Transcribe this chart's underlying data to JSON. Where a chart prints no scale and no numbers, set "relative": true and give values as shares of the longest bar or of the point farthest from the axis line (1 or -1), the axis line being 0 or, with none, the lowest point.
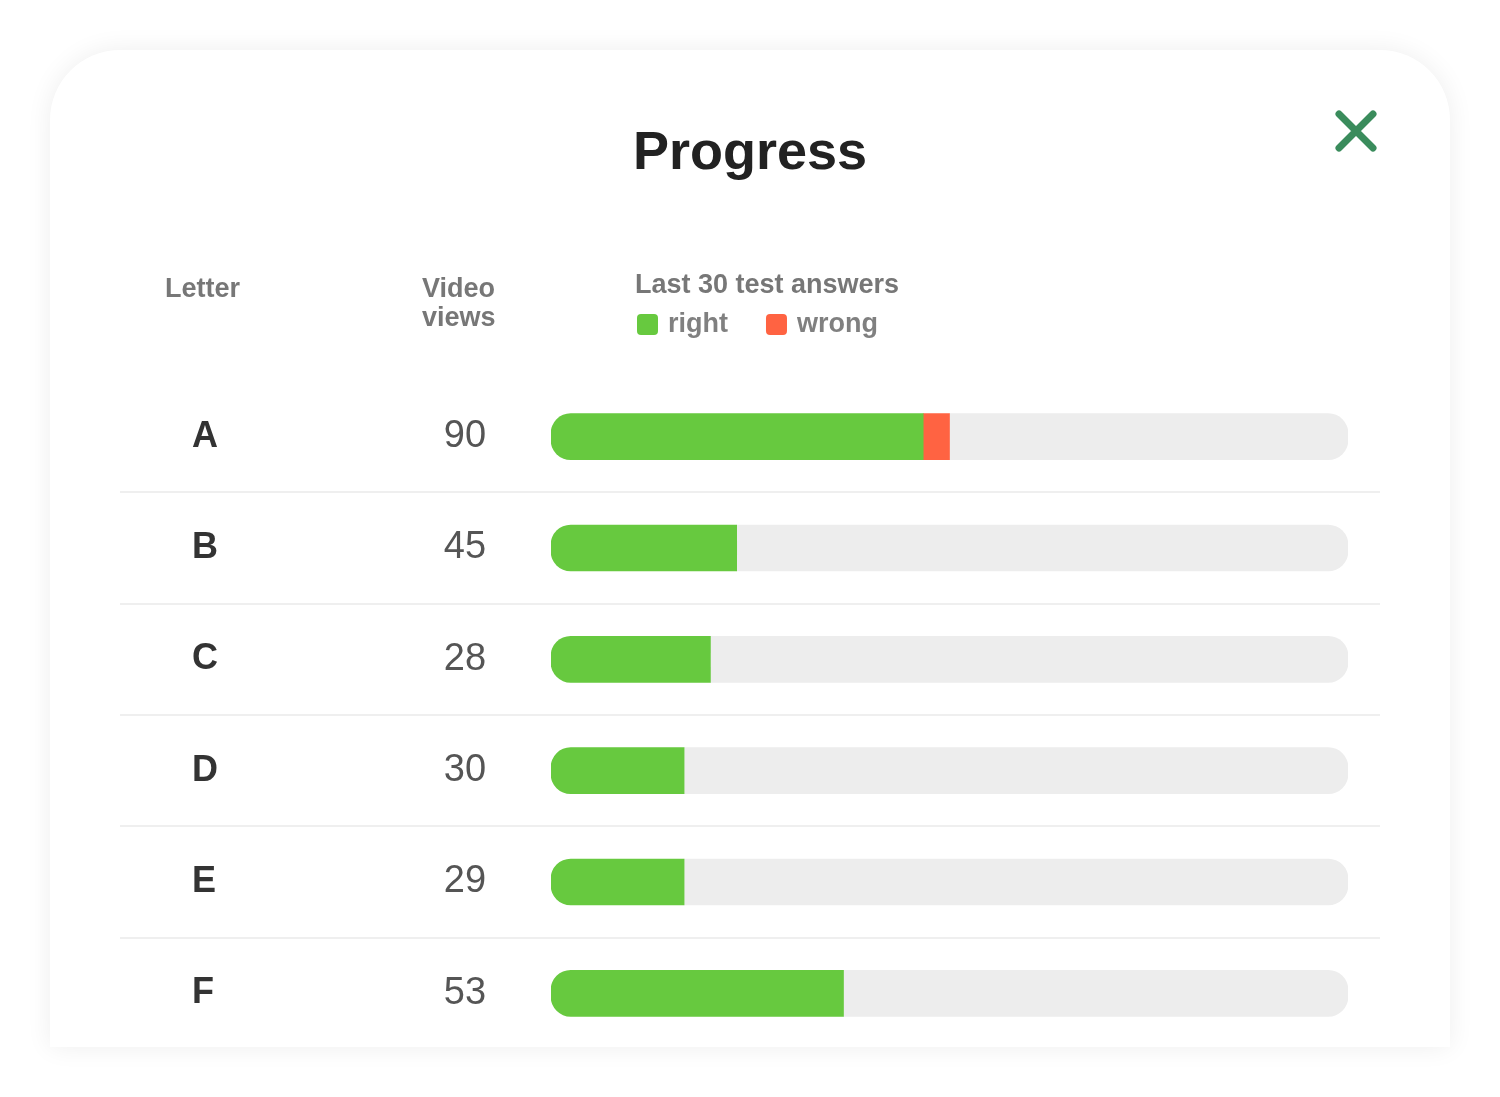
{
  "chart_data": {
    "type": "bar",
    "orientation": "horizontal",
    "stacked": true,
    "relative": true,
    "title": "Progress",
    "ylabel": "Letter",
    "legend_title": "Last 30 test answers",
    "legend": "top left",
    "categories": [
      "A",
      "B",
      "C",
      "D",
      "E",
      "F"
    ],
    "series": [
      {
        "name": "right",
        "color": "#67c93f",
        "values": [
          0.467,
          0.233,
          0.2,
          0.167,
          0.167,
          0.367
        ]
      },
      {
        "name": "wrong",
        "color": "#ff6342",
        "values": [
          0.033,
          null,
          null,
          null,
          null,
          null
        ]
      },
      {
        "color": "#ededed",
        "values": [
          0.5,
          0.767,
          0.8,
          0.833,
          0.833,
          0.633
        ]
      }
    ],
    "annotations": [
      "Video views",
      "90",
      "45",
      "28",
      "30",
      "29",
      "53"
    ]
  }
}
